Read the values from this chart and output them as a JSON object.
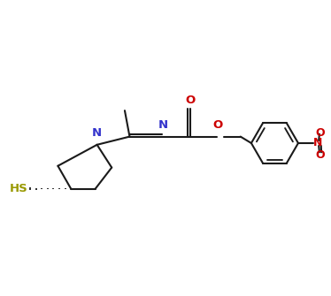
{
  "bg_color": "#ffffff",
  "bond_color": "#1a1a1a",
  "N_color": "#3333cc",
  "O_color": "#cc0000",
  "S_color": "#999900",
  "line_width": 1.5,
  "figsize": [
    3.74,
    3.35
  ],
  "dpi": 100,
  "xlim": [
    0.0,
    10.0
  ],
  "ylim": [
    1.5,
    7.5
  ]
}
